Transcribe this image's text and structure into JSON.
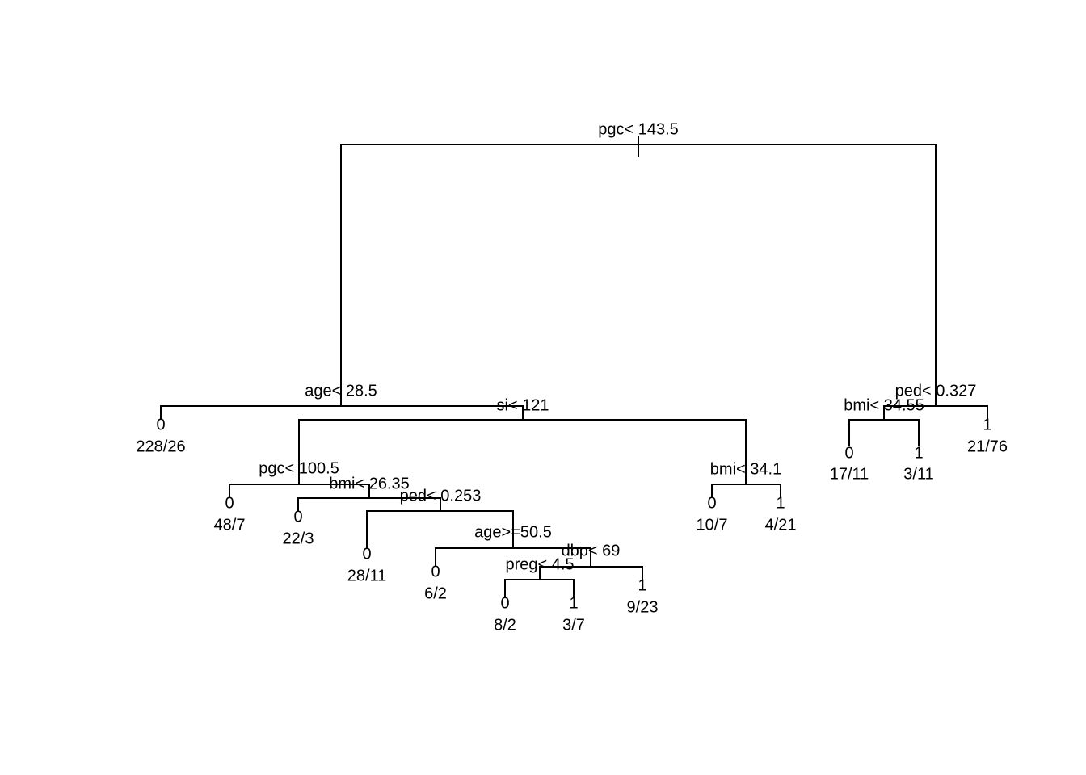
{
  "splits": [
    "pgc< 143.5",
    "age< 28.5",
    "si< 121",
    "pgc< 100.5",
    "bmi< 26.35",
    "ped< 0.253",
    "age>=50.5",
    "dbp< 69",
    "preg< 4.5",
    "bmi< 34.1",
    "ped< 0.327",
    "bmi< 34.55"
  ],
  "leaves": [
    {
      "class": "0",
      "counts": "228/26"
    },
    {
      "class": "0",
      "counts": "48/7"
    },
    {
      "class": "0",
      "counts": "22/3"
    },
    {
      "class": "0",
      "counts": "28/11"
    },
    {
      "class": "0",
      "counts": "6/2"
    },
    {
      "class": "0",
      "counts": "8/2"
    },
    {
      "class": "1",
      "counts": "3/7"
    },
    {
      "class": "1",
      "counts": "9/23"
    },
    {
      "class": "0",
      "counts": "10/7"
    },
    {
      "class": "1",
      "counts": "4/21"
    },
    {
      "class": "0",
      "counts": "17/11"
    },
    {
      "class": "1",
      "counts": "3/11"
    },
    {
      "class": "1",
      "counts": "21/76"
    }
  ]
}
